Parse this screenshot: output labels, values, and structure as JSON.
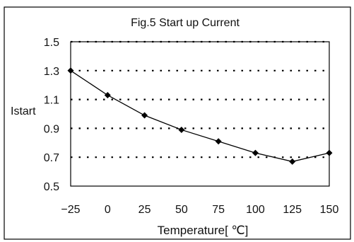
{
  "chart_data": {
    "type": "line",
    "title": "Fig.5 Start up Current",
    "xlabel": "Temperature[ ℃]",
    "ylabel": "Istart",
    "x": [
      -25,
      0,
      25,
      50,
      75,
      100,
      125,
      150
    ],
    "x_tick_labels": [
      "−25",
      "0",
      "25",
      "50",
      "75",
      "100",
      "125",
      "150"
    ],
    "y_ticks": [
      0.5,
      0.7,
      0.9,
      1.1,
      1.3,
      1.5
    ],
    "y_tick_labels": [
      "0.5",
      "0.7",
      "0.9",
      "1.1",
      "1.3",
      "1.5"
    ],
    "xlim": [
      -25,
      150
    ],
    "ylim": [
      0.5,
      1.5
    ],
    "grid": "horizontal dotted",
    "series": [
      {
        "values": [
          1.3,
          1.13,
          0.99,
          0.89,
          0.81,
          0.73,
          0.67,
          0.73
        ]
      }
    ],
    "colors": {
      "line": "#000000",
      "grid": "#000000",
      "frame": "#000000"
    }
  }
}
